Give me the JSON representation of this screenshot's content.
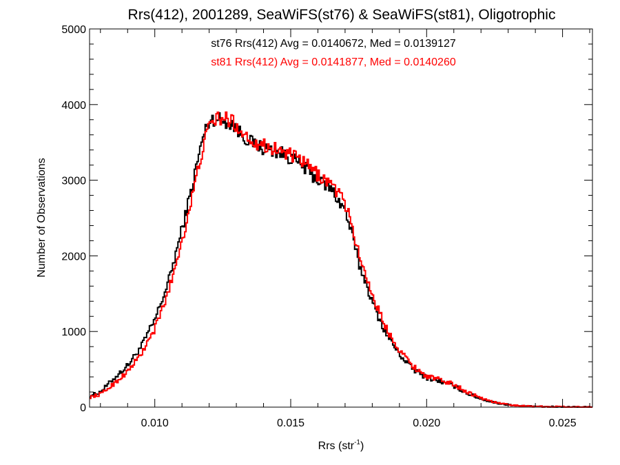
{
  "chart_data": {
    "type": "line",
    "title": "Rrs(412), 2001289, SeaWiFS(st76) & SeaWiFS(st81), Oligotrophic",
    "xlabel_main": "Rrs (str",
    "xlabel_sup": "-1",
    "xlabel_tail": ")",
    "ylabel": "Number of Observations",
    "xlim": [
      0.0076,
      0.0261
    ],
    "ylim": [
      0,
      5000
    ],
    "x_ticks": [
      0.01,
      0.015,
      0.02,
      0.025
    ],
    "x_tick_labels": [
      "0.010",
      "0.015",
      "0.020",
      "0.025"
    ],
    "y_ticks": [
      0,
      1000,
      2000,
      3000,
      4000,
      5000
    ],
    "y_tick_labels": [
      "0",
      "1000",
      "2000",
      "3000",
      "4000",
      "5000"
    ],
    "grid": false,
    "annotations": [
      {
        "text": "st76 Rrs(412) Avg = 0.0140672, Med = 0.0139127",
        "color": "#000000"
      },
      {
        "text": "st81 Rrs(412) Avg = 0.0141877, Med = 0.0140260",
        "color": "#ff0000"
      }
    ],
    "series": [
      {
        "color": "#000000",
        "x": [
          0.0076,
          0.008,
          0.0085,
          0.009,
          0.0095,
          0.01,
          0.0105,
          0.011,
          0.0113,
          0.0116,
          0.0118,
          0.012,
          0.0122,
          0.0125,
          0.0128,
          0.0131,
          0.0135,
          0.014,
          0.0145,
          0.015,
          0.0155,
          0.016,
          0.0165,
          0.017,
          0.0173,
          0.0175,
          0.0178,
          0.018,
          0.0185,
          0.019,
          0.0195,
          0.02,
          0.0205,
          0.021,
          0.0215,
          0.022,
          0.0225,
          0.023,
          0.0235,
          0.024,
          0.0245,
          0.025,
          0.0255,
          0.0261
        ],
        "y": [
          150,
          200,
          380,
          550,
          800,
          1150,
          1650,
          2350,
          2800,
          3300,
          3600,
          3780,
          3820,
          3790,
          3760,
          3640,
          3510,
          3420,
          3380,
          3300,
          3170,
          3000,
          2880,
          2600,
          2220,
          1900,
          1620,
          1380,
          980,
          700,
          500,
          390,
          340,
          280,
          180,
          110,
          60,
          30,
          15,
          8,
          5,
          3,
          2,
          1
        ]
      },
      {
        "color": "#ff0000",
        "x": [
          0.0076,
          0.008,
          0.0085,
          0.009,
          0.0095,
          0.01,
          0.0105,
          0.011,
          0.0113,
          0.0116,
          0.0118,
          0.012,
          0.0122,
          0.0125,
          0.0128,
          0.0131,
          0.0135,
          0.014,
          0.0145,
          0.015,
          0.0155,
          0.016,
          0.0165,
          0.017,
          0.0173,
          0.0175,
          0.0178,
          0.018,
          0.0185,
          0.019,
          0.0195,
          0.02,
          0.0205,
          0.021,
          0.0215,
          0.022,
          0.0225,
          0.023,
          0.0235,
          0.024,
          0.0245,
          0.025,
          0.0255,
          0.0261
        ],
        "y": [
          130,
          170,
          310,
          470,
          700,
          1030,
          1520,
          2200,
          2650,
          3150,
          3480,
          3700,
          3810,
          3810,
          3800,
          3680,
          3540,
          3460,
          3410,
          3330,
          3230,
          3070,
          2950,
          2700,
          2340,
          2020,
          1720,
          1480,
          1050,
          760,
          540,
          410,
          360,
          300,
          200,
          120,
          65,
          32,
          16,
          9,
          6,
          4,
          2,
          1
        ]
      }
    ]
  }
}
